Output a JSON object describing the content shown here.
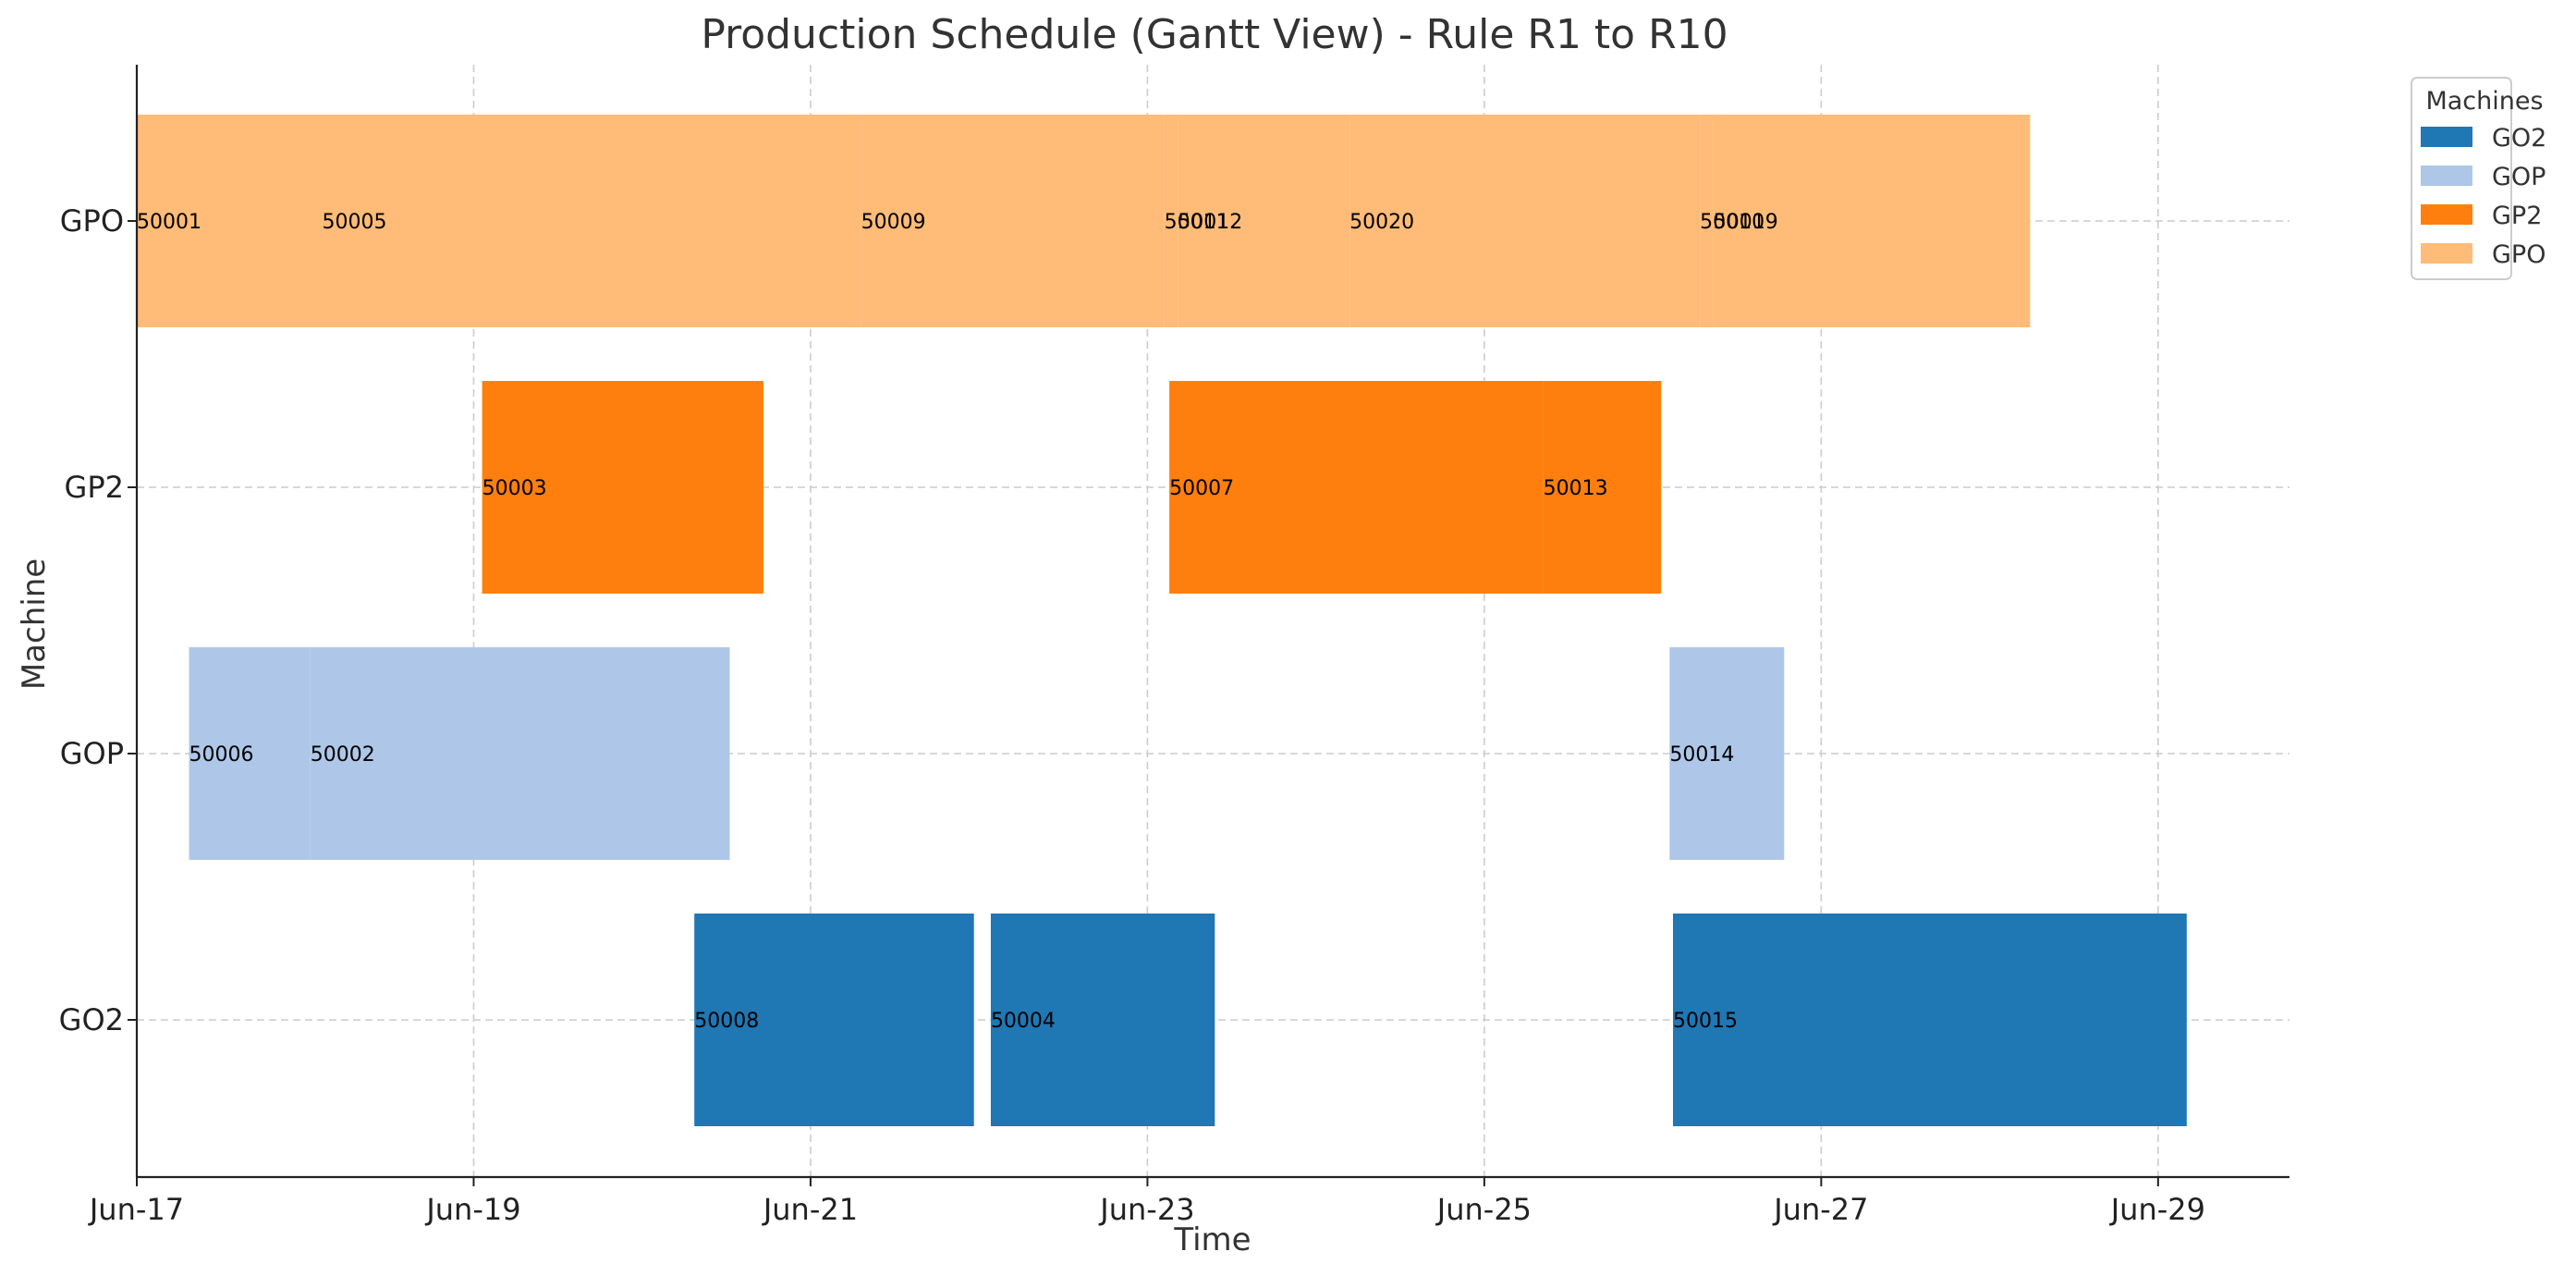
{
  "chart_data": {
    "type": "gantt",
    "title": "Production Schedule (Gantt View) - Rule R1 to R10",
    "xlabel": "Time",
    "ylabel": "Machine",
    "grid": true,
    "legend_title": "Machines",
    "legend_position": "outside top-right",
    "machines": [
      "GO2",
      "GOP",
      "GP2",
      "GPO"
    ],
    "colors": {
      "GO2": "#1f77b4",
      "GOP": "#aec7e8",
      "GP2": "#ff7f0e",
      "GPO": "#ffbb78"
    },
    "x_ticks": [
      {
        "label": "Jun-17",
        "day": 17
      },
      {
        "label": "Jun-19",
        "day": 19
      },
      {
        "label": "Jun-21",
        "day": 21
      },
      {
        "label": "Jun-23",
        "day": 23
      },
      {
        "label": "Jun-25",
        "day": 25
      },
      {
        "label": "Jun-27",
        "day": 27
      },
      {
        "label": "Jun-29",
        "day": 29
      }
    ],
    "xlim": [
      17.0,
      29.78
    ],
    "tasks": [
      {
        "machine": "GPO",
        "label": "50001",
        "start": 17.0,
        "end": 18.1
      },
      {
        "machine": "GPO",
        "label": "50005",
        "start": 18.1,
        "end": 21.3
      },
      {
        "machine": "GPO",
        "label": "50009",
        "start": 21.3,
        "end": 23.1
      },
      {
        "machine": "GPO",
        "label": "50011",
        "start": 23.1,
        "end": 23.18
      },
      {
        "machine": "GPO",
        "label": "50012",
        "start": 23.18,
        "end": 24.2
      },
      {
        "machine": "GPO",
        "label": "50020",
        "start": 24.2,
        "end": 26.28
      },
      {
        "machine": "GPO",
        "label": "50010",
        "start": 26.28,
        "end": 26.36
      },
      {
        "machine": "GPO",
        "label": "50019",
        "start": 26.36,
        "end": 28.24
      },
      {
        "machine": "GP2",
        "label": "50003",
        "start": 19.05,
        "end": 20.72
      },
      {
        "machine": "GP2",
        "label": "50007",
        "start": 23.13,
        "end": 25.35
      },
      {
        "machine": "GP2",
        "label": "50013",
        "start": 25.35,
        "end": 26.05
      },
      {
        "machine": "GOP",
        "label": "50006",
        "start": 17.31,
        "end": 18.03
      },
      {
        "machine": "GOP",
        "label": "50002",
        "start": 18.03,
        "end": 20.52
      },
      {
        "machine": "GOP",
        "label": "50014",
        "start": 26.1,
        "end": 26.78
      },
      {
        "machine": "GO2",
        "label": "50008",
        "start": 20.31,
        "end": 21.97
      },
      {
        "machine": "GO2",
        "label": "50004",
        "start": 22.07,
        "end": 23.4
      },
      {
        "machine": "GO2",
        "label": "50015",
        "start": 26.12,
        "end": 29.17
      }
    ]
  }
}
